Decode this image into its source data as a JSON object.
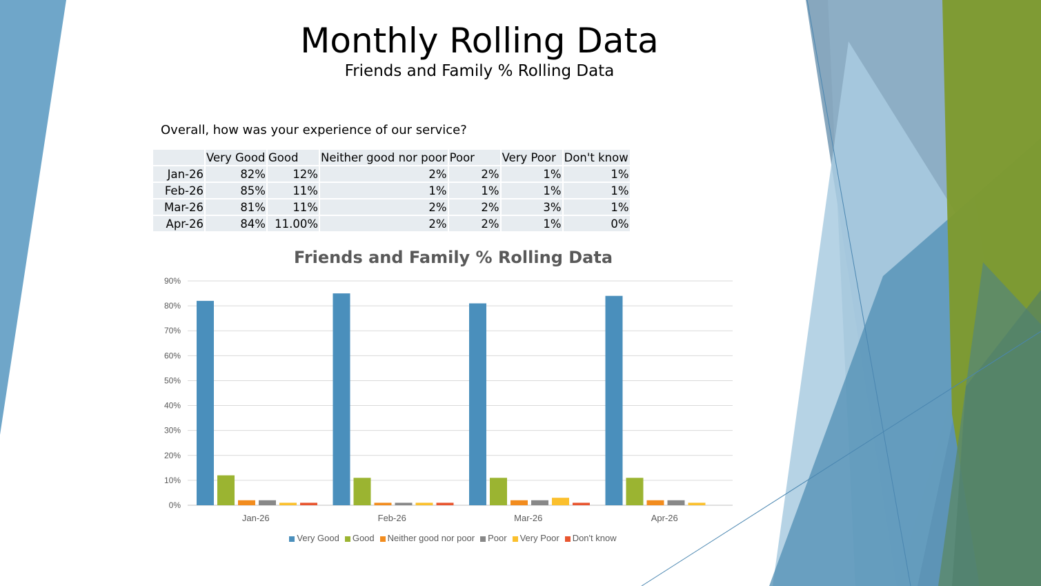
{
  "slide": {
    "title": "Monthly Rolling Data",
    "subtitle": "Friends and Family % Rolling Data",
    "question": "Overall, how was your experience of our service?"
  },
  "table": {
    "headers": [
      "",
      "Very Good",
      "Good",
      "Neither good nor poor",
      "Poor",
      "Very Poor",
      "Don't know"
    ],
    "rows": [
      [
        "Jan-26",
        "82%",
        "12%",
        "2%",
        "2%",
        "1%",
        "1%"
      ],
      [
        "Feb-26",
        "85%",
        "11%",
        "1%",
        "1%",
        "1%",
        "1%"
      ],
      [
        "Mar-26",
        "81%",
        "11%",
        "2%",
        "2%",
        "3%",
        "1%"
      ],
      [
        "Apr-26",
        "84%",
        "11.00%",
        "2%",
        "2%",
        "1%",
        "0%"
      ]
    ]
  },
  "chart_data": {
    "type": "bar",
    "title": "Friends and Family % Rolling Data",
    "categories": [
      "Jan-26",
      "Feb-26",
      "Mar-26",
      "Apr-26"
    ],
    "series": [
      {
        "name": "Very Good",
        "color": "#4a8fbc",
        "values": [
          82,
          85,
          81,
          84
        ]
      },
      {
        "name": "Good",
        "color": "#9bb431",
        "values": [
          12,
          11,
          11,
          11
        ]
      },
      {
        "name": "Neither good nor poor",
        "color": "#f28c1e",
        "values": [
          2,
          1,
          2,
          2
        ]
      },
      {
        "name": "Poor",
        "color": "#888888",
        "values": [
          2,
          1,
          2,
          2
        ]
      },
      {
        "name": "Very Poor",
        "color": "#fbc02d",
        "values": [
          1,
          1,
          3,
          1
        ]
      },
      {
        "name": "Don't know",
        "color": "#e8552f",
        "values": [
          1,
          1,
          1,
          0
        ]
      }
    ],
    "ylim": [
      0,
      90
    ],
    "yticks": [
      "0%",
      "10%",
      "20%",
      "30%",
      "40%",
      "50%",
      "60%",
      "70%",
      "80%",
      "90%"
    ],
    "grid": true,
    "legend_position": "bottom"
  }
}
